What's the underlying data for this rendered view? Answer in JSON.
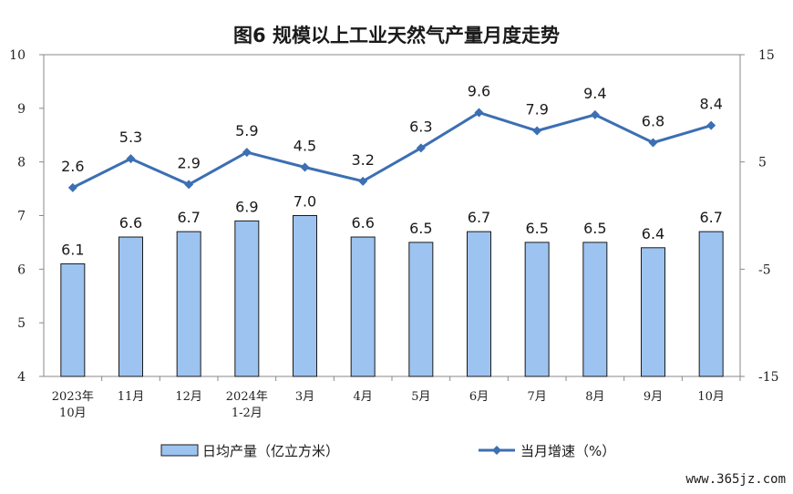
{
  "chart_data": {
    "type": "bar+line",
    "title": "图6  规模以上工业天然气产量月度走势",
    "categories": [
      [
        "2023年",
        "10月"
      ],
      [
        "11月"
      ],
      [
        "12月"
      ],
      [
        "2024年",
        "1-2月"
      ],
      [
        "3月"
      ],
      [
        "4月"
      ],
      [
        "5月"
      ],
      [
        "6月"
      ],
      [
        "7月"
      ],
      [
        "8月"
      ],
      [
        "9月"
      ],
      [
        "10月"
      ]
    ],
    "series": [
      {
        "name": "日均产量（亿立方米）",
        "type": "bar",
        "axis": "left",
        "values": [
          6.1,
          6.6,
          6.7,
          6.9,
          7.0,
          6.6,
          6.5,
          6.7,
          6.5,
          6.5,
          6.4,
          6.7
        ]
      },
      {
        "name": "当月增速（%）",
        "type": "line",
        "axis": "right",
        "values": [
          2.6,
          5.3,
          2.9,
          5.9,
          4.5,
          3.2,
          6.3,
          9.6,
          7.9,
          9.4,
          6.8,
          8.4
        ]
      }
    ],
    "y_left": {
      "min": 4,
      "max": 10,
      "ticks": [
        "10",
        "9",
        "8",
        "7",
        "6",
        "5",
        "4"
      ]
    },
    "y_right": {
      "min": -15,
      "max": 15,
      "ticks": [
        "15",
        "5",
        "-5",
        "-15"
      ]
    },
    "legend_position": "bottom",
    "colors": {
      "bar_fill": "#9dc3f0",
      "bar_stroke": "#1a1a1a",
      "line": "#3c6fb3"
    }
  },
  "watermark": "www.365jz.com"
}
